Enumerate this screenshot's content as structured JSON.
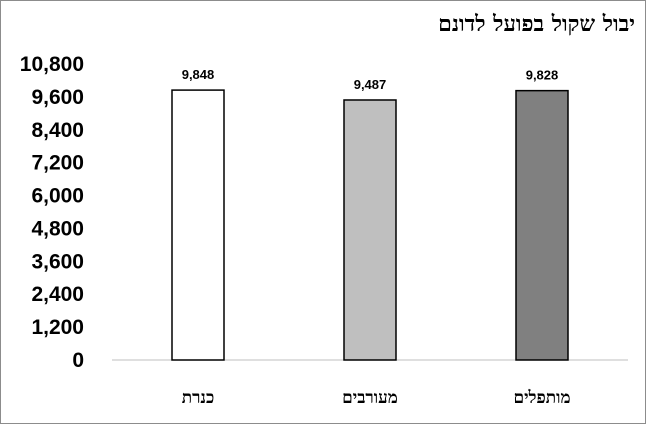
{
  "chart_data": {
    "type": "bar",
    "title": "יבול שקול בפועל לדונם",
    "categories": [
      "כנרת",
      "מעורבים",
      "מותפלים"
    ],
    "values": [
      9848,
      9487,
      9828
    ],
    "value_labels": [
      "9,848",
      "9,487",
      "9,828"
    ],
    "y_ticks": [
      "0",
      "1,200",
      "2,400",
      "3,600",
      "4,800",
      "6,000",
      "7,200",
      "8,400",
      "9,600",
      "10,800"
    ],
    "ylim": [
      0,
      10800
    ],
    "grid": false,
    "legend": "none",
    "bar_fill_colors": [
      "#ffffff",
      "#bfbfbf",
      "#808080"
    ],
    "bar_edge_color": "#000000",
    "axis_color": "#bfbfbf"
  }
}
